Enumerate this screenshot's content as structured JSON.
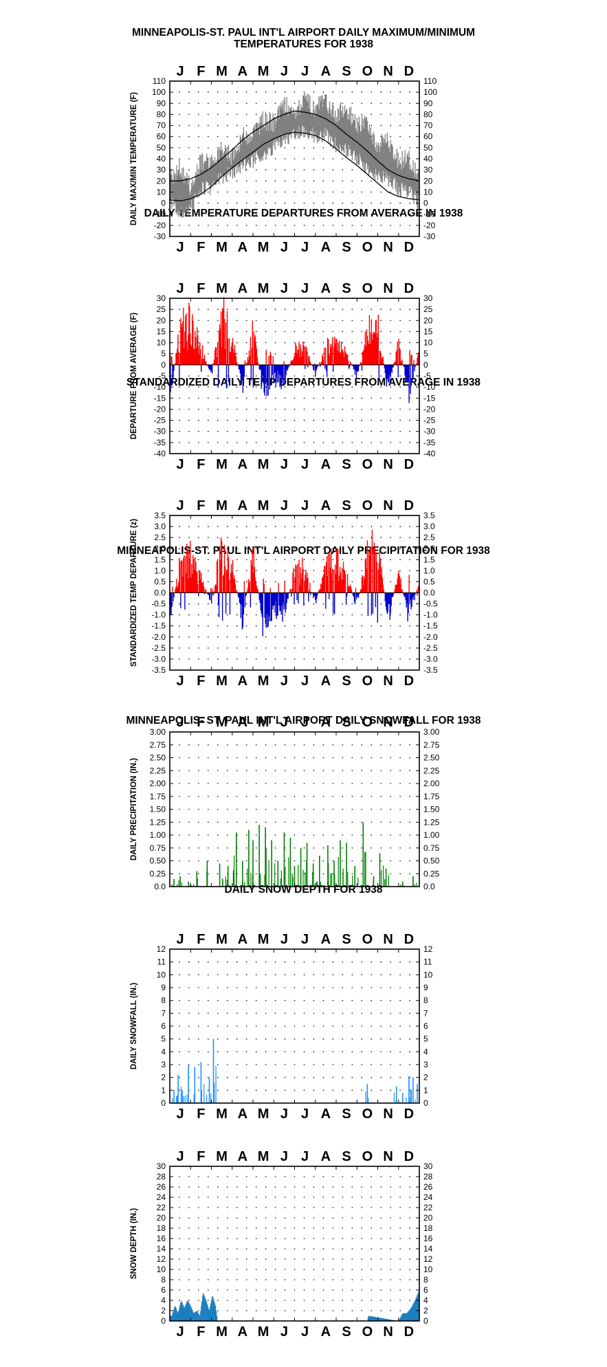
{
  "charts": [
    {
      "title": "MINNEAPOLIS-ST. PAUL INT'L AIRPORT DAILY MAXIMUM/MINIMUM",
      "subtitle": "TEMPERATURES FOR 1938"
    },
    {
      "title": "DAILY TEMPERATURE DEPARTURES FROM AVERAGE IN 1938"
    },
    {
      "title": "STANDARDIZED DAILY TEMP DEPARTURES FROM AVERAGE IN 1938"
    },
    {
      "title": "MINNEAPOLIS-ST. PAUL INT'L AIRPORT DAILY PRECIPITATION FOR 1938"
    },
    {
      "title": "MINNEAPOLIS- ST. PAUL INT'L AIRPORT DAILY SNOWFALL FOR 1938"
    },
    {
      "title": "DAILY SNOW DEPTH FOR 1938"
    }
  ],
  "colors": {
    "temp_range": "#808080",
    "normal_lines": "#000000",
    "above_average": "#ff0000",
    "below_average": "#0000cc",
    "precipitation": "#008000",
    "snowfall": "#1e90ff",
    "snow_depth": "#1c7fbf",
    "grid_dots": "#000000"
  },
  "chart_data": [
    {
      "type": "area",
      "title": "MINNEAPOLIS-ST. PAUL INT'L AIRPORT DAILY MAXIMUM/MINIMUM TEMPERATURES FOR 1938",
      "ylabel": "DAILY MAX/MIN TEMPERATURE (F)",
      "xlabel": "",
      "month_labels": [
        "J",
        "F",
        "M",
        "A",
        "M",
        "J",
        "J",
        "A",
        "S",
        "O",
        "N",
        "D"
      ],
      "ylim": [
        -30,
        110
      ],
      "yticks": [
        -30,
        -20,
        -10,
        0,
        10,
        20,
        30,
        40,
        50,
        60,
        70,
        80,
        90,
        100,
        110
      ],
      "ytick_labels": [
        "-30",
        "-20",
        "-10",
        "0",
        "10",
        "20",
        "30",
        "40",
        "50",
        "60",
        "70",
        "80",
        "90",
        "100",
        "110"
      ],
      "grid": "dotted",
      "x_unit": "month",
      "series": [
        {
          "role": "daily_high",
          "x": [
            0,
            0.5,
            1,
            1.5,
            2,
            2.5,
            3,
            3.5,
            4,
            4.5,
            5,
            5.5,
            6,
            6.5,
            7,
            7.5,
            8,
            8.5,
            9,
            9.5,
            10,
            10.5,
            11,
            11.5,
            12
          ],
          "values": [
            20,
            32,
            15,
            38,
            35,
            52,
            42,
            60,
            62,
            75,
            72,
            88,
            82,
            92,
            86,
            90,
            80,
            85,
            70,
            72,
            52,
            58,
            38,
            40,
            25
          ]
        },
        {
          "role": "daily_low",
          "x": [
            0,
            0.5,
            1,
            1.5,
            2,
            2.5,
            3,
            3.5,
            4,
            4.5,
            5,
            5.5,
            6,
            6.5,
            7,
            7.5,
            8,
            8.5,
            9,
            9.5,
            10,
            10.5,
            11,
            11.5,
            12
          ],
          "values": [
            2,
            -10,
            -5,
            12,
            14,
            24,
            28,
            34,
            38,
            45,
            50,
            58,
            62,
            66,
            60,
            62,
            52,
            48,
            40,
            32,
            25,
            22,
            12,
            10,
            0
          ]
        },
        {
          "role": "normal_high",
          "x": [
            0,
            0.5,
            1,
            1.5,
            2,
            2.5,
            3,
            3.5,
            4,
            4.5,
            5,
            5.5,
            6,
            6.5,
            7,
            7.5,
            8,
            8.5,
            9,
            9.5,
            10,
            10.5,
            11,
            11.5,
            12
          ],
          "values": [
            20,
            20,
            22,
            26,
            32,
            40,
            48,
            57,
            64,
            70,
            76,
            80,
            83,
            82,
            80,
            76,
            70,
            62,
            55,
            47,
            38,
            30,
            25,
            22,
            20
          ]
        },
        {
          "role": "normal_low",
          "x": [
            0,
            0.5,
            1,
            1.5,
            2,
            2.5,
            3,
            3.5,
            4,
            4.5,
            5,
            5.5,
            6,
            6.5,
            7,
            7.5,
            8,
            8.5,
            9,
            9.5,
            10,
            10.5,
            11,
            11.5,
            12
          ],
          "values": [
            3,
            2,
            4,
            8,
            15,
            24,
            32,
            39,
            46,
            53,
            58,
            62,
            64,
            63,
            61,
            56,
            49,
            41,
            34,
            26,
            18,
            10,
            6,
            4,
            3
          ]
        }
      ]
    },
    {
      "type": "bar",
      "title": "DAILY TEMPERATURE DEPARTURES FROM AVERAGE IN 1938",
      "ylabel": "DEPARTURE FROM AVERAGE (F)",
      "xlabel": "",
      "month_labels": [
        "J",
        "F",
        "M",
        "A",
        "M",
        "J",
        "J",
        "A",
        "S",
        "O",
        "N",
        "D"
      ],
      "ylim": [
        -40,
        30
      ],
      "yticks": [
        -40,
        -35,
        -30,
        -25,
        -20,
        -15,
        -10,
        -5,
        0,
        5,
        10,
        15,
        20,
        25,
        30
      ],
      "ytick_labels": [
        "-40",
        "-35",
        "-30",
        "-25",
        "-20",
        "-15",
        "-10",
        "-5",
        "0",
        "5",
        "10",
        "15",
        "20",
        "25",
        "30"
      ],
      "grid": "dotted",
      "x_unit": "month",
      "series": [
        {
          "role": "departure",
          "x": [
            0,
            0.5,
            1,
            1.5,
            2,
            2.5,
            3,
            3.5,
            4,
            4.5,
            5,
            5.5,
            6,
            6.5,
            7,
            7.5,
            8,
            8.5,
            9,
            9.5,
            10,
            10.5,
            11,
            11.5,
            12
          ],
          "values": [
            -18,
            20,
            25,
            10,
            -6,
            28,
            15,
            -12,
            20,
            -16,
            -8,
            -10,
            8,
            10,
            -5,
            10,
            12,
            6,
            -6,
            18,
            22,
            -14,
            12,
            -16,
            8
          ]
        }
      ]
    },
    {
      "type": "bar",
      "title": "STANDARDIZED DAILY TEMP DEPARTURES FROM AVERAGE IN 1938",
      "ylabel": "STANDARDIZED TEMP DEPARTURE (z)",
      "xlabel": "",
      "month_labels": [
        "J",
        "F",
        "M",
        "A",
        "M",
        "J",
        "J",
        "A",
        "S",
        "O",
        "N",
        "D"
      ],
      "ylim": [
        -3.5,
        3.5
      ],
      "yticks": [
        -3.5,
        -3.0,
        -2.5,
        -2.0,
        -1.5,
        -1.0,
        -0.5,
        0.0,
        0.5,
        1.0,
        1.5,
        2.0,
        2.5,
        3.0,
        3.5
      ],
      "ytick_labels_left": [
        "-3.5",
        "-3.0",
        "-2.5",
        "-2.0",
        "-1.5",
        "-1.0",
        "-0.5",
        "0.0",
        "0.5",
        "1.0",
        "1.5",
        "2.0",
        "2.5",
        "3.0",
        "3.5"
      ],
      "ytick_labels_right": [
        "-3.5",
        "-3.0",
        "-2.5",
        "-2.0",
        "-1.5",
        "-1.0",
        "-0.5",
        "0.0",
        "0.5",
        "1.0",
        "1.5",
        "2.0",
        "2.5",
        "3.0",
        "3.5"
      ],
      "grid": "dotted",
      "x_unit": "month",
      "series": [
        {
          "role": "standardized_departure",
          "x": [
            0,
            0.5,
            1,
            1.5,
            2,
            2.5,
            3,
            3.5,
            4,
            4.5,
            5,
            5.5,
            6,
            6.5,
            7,
            7.5,
            8,
            8.5,
            9,
            9.5,
            10,
            10.5,
            11,
            11.5,
            12
          ],
          "values": [
            -1.5,
            1.8,
            2.0,
            0.8,
            -0.6,
            2.8,
            1.6,
            -1.5,
            2.2,
            -1.9,
            -1.0,
            -1.2,
            1.2,
            1.4,
            -0.6,
            1.6,
            1.8,
            1.0,
            -0.8,
            2.2,
            2.6,
            -1.5,
            1.2,
            -1.6,
            0.8
          ]
        }
      ]
    },
    {
      "type": "bar",
      "title": "MINNEAPOLIS-ST. PAUL INT'L AIRPORT DAILY PRECIPITATION FOR 1938",
      "ylabel": "DAILY PRECIPITATION (IN.)",
      "xlabel": "",
      "month_labels": [
        "J",
        "F",
        "M",
        "A",
        "M",
        "J",
        "J",
        "A",
        "S",
        "O",
        "N",
        "D"
      ],
      "ylim": [
        0,
        3.0
      ],
      "yticks": [
        0,
        0.25,
        0.5,
        0.75,
        1.0,
        1.25,
        1.5,
        1.75,
        2.0,
        2.25,
        2.5,
        2.75,
        3.0
      ],
      "ytick_labels": [
        "0.0",
        "0.25",
        "0.50",
        "0.75",
        "1.00",
        "1.25",
        "1.50",
        "1.75",
        "2.00",
        "2.25",
        "2.50",
        "2.75",
        "3.00"
      ],
      "grid": "dotted",
      "x_unit": "month",
      "series": [
        {
          "role": "precipitation",
          "x": [
            0.2,
            0.5,
            0.9,
            1.3,
            1.8,
            2.4,
            2.8,
            3.2,
            3.5,
            3.8,
            4.0,
            4.3,
            4.6,
            4.9,
            5.2,
            5.5,
            5.8,
            6.0,
            6.3,
            6.6,
            6.9,
            7.2,
            7.6,
            7.9,
            8.2,
            8.5,
            8.9,
            9.3,
            9.8,
            10.1,
            10.4,
            11.2,
            11.7
          ],
          "values": [
            0.15,
            0.2,
            0.1,
            0.3,
            0.5,
            0.45,
            0.4,
            1.05,
            0.5,
            1.1,
            0.9,
            1.2,
            1.15,
            0.9,
            0.5,
            1.05,
            0.95,
            0.4,
            0.75,
            0.85,
            0.45,
            0.6,
            0.8,
            0.5,
            0.9,
            0.85,
            0.4,
            1.25,
            0.2,
            0.65,
            0.35,
            0.1,
            0.2
          ]
        }
      ]
    },
    {
      "type": "bar",
      "title": "MINNEAPOLIS- ST. PAUL INT'L AIRPORT DAILY SNOWFALL FOR 1938",
      "ylabel": "DAILY SNOWFALL (IN.)",
      "xlabel": "",
      "month_labels": [
        "J",
        "F",
        "M",
        "A",
        "M",
        "J",
        "J",
        "A",
        "S",
        "O",
        "N",
        "D"
      ],
      "ylim": [
        0,
        12
      ],
      "yticks": [
        0,
        1,
        2,
        3,
        4,
        5,
        6,
        7,
        8,
        9,
        10,
        11,
        12
      ],
      "ytick_labels": [
        "0",
        "1",
        "2",
        "3",
        "4",
        "5",
        "6",
        "7",
        "8",
        "9",
        "10",
        "11",
        "12"
      ],
      "grid": "dotted",
      "x_unit": "month",
      "series": [
        {
          "role": "snowfall",
          "x": [
            0.2,
            0.4,
            0.6,
            0.9,
            1.2,
            1.5,
            1.9,
            2.1,
            9.5,
            10.9,
            11.2,
            11.5,
            11.7,
            11.9
          ],
          "values": [
            1.0,
            2.2,
            1.0,
            3.0,
            2.8,
            3.2,
            2.0,
            5.0,
            1.5,
            1.3,
            0.8,
            2.1,
            2.0,
            1.5
          ]
        }
      ]
    },
    {
      "type": "area",
      "title": "DAILY SNOW DEPTH FOR 1938",
      "ylabel": "SNOW DEPTH (IN.)",
      "xlabel": "",
      "month_labels": [
        "J",
        "F",
        "M",
        "A",
        "M",
        "J",
        "J",
        "A",
        "S",
        "O",
        "N",
        "D"
      ],
      "ylim": [
        0,
        30
      ],
      "yticks": [
        0,
        2,
        4,
        6,
        8,
        10,
        12,
        14,
        16,
        18,
        20,
        22,
        24,
        26,
        28,
        30
      ],
      "ytick_labels": [
        "0",
        "2",
        "4",
        "6",
        "8",
        "10",
        "12",
        "14",
        "16",
        "18",
        "20",
        "22",
        "24",
        "26",
        "28",
        "30"
      ],
      "grid": "dotted",
      "x_unit": "month",
      "series": [
        {
          "role": "snow_depth",
          "x": [
            0,
            0.1,
            0.25,
            0.4,
            0.55,
            0.7,
            0.85,
            1.0,
            1.15,
            1.3,
            1.45,
            1.6,
            1.75,
            1.9,
            2.05,
            2.2,
            2.3,
            9.5,
            9.55,
            11.0,
            11.2,
            11.4,
            11.6,
            11.8,
            12
          ],
          "values": [
            1,
            1,
            3,
            1.5,
            4,
            2.5,
            4,
            3,
            1.5,
            2,
            1,
            5.5,
            4,
            2,
            5,
            3,
            0,
            0,
            1,
            0,
            1.5,
            1.5,
            2.5,
            4,
            6
          ]
        }
      ]
    }
  ]
}
